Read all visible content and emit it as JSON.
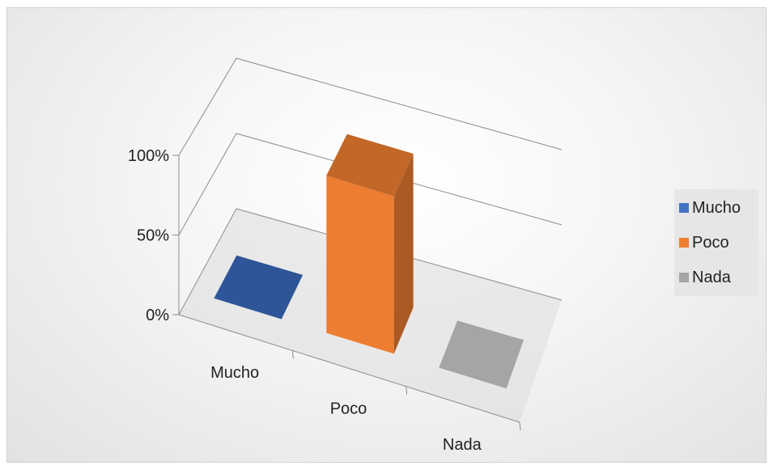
{
  "chart_data": {
    "type": "bar",
    "title": "",
    "xlabel": "",
    "ylabel": "",
    "categories": [
      "Mucho",
      "Poco",
      "Nada"
    ],
    "y_ticks": [
      "0%",
      "50%",
      "100%"
    ],
    "ylim": [
      0,
      100
    ],
    "series": [
      {
        "name": "Mucho",
        "values": [
          0,
          null,
          null
        ],
        "color": "#2e5597"
      },
      {
        "name": "Poco",
        "values": [
          null,
          100,
          null
        ],
        "color": "#ed7d31"
      },
      {
        "name": "Nada",
        "values": [
          null,
          null,
          0
        ],
        "color": "#a5a5a5"
      }
    ],
    "style": "3d-column",
    "legend": {
      "position": "right",
      "entries": [
        {
          "label": "Mucho",
          "color": "#4472c4"
        },
        {
          "label": "Poco",
          "color": "#ed7d31"
        },
        {
          "label": "Nada",
          "color": "#a5a5a5"
        }
      ]
    },
    "grid": true
  }
}
